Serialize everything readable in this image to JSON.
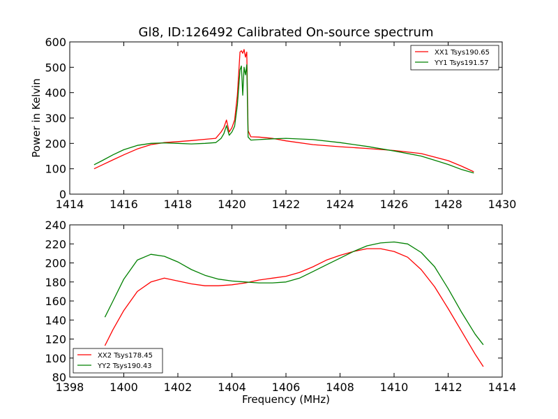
{
  "title": "Gl8, ID:126492 Calibrated On-source spectrum",
  "chart_data": [
    {
      "type": "line",
      "title": "Gl8, ID:126492 Calibrated On-source spectrum",
      "xlabel": "",
      "ylabel": "Power in Kelvin",
      "xlim": [
        1414,
        1430
      ],
      "ylim": [
        0,
        600
      ],
      "xticks": [
        1414,
        1416,
        1418,
        1420,
        1422,
        1424,
        1426,
        1428,
        1430
      ],
      "yticks": [
        0,
        100,
        200,
        300,
        400,
        500,
        600
      ],
      "legend_position": "top-right",
      "grid": false,
      "series": [
        {
          "name": "XX1 Tsys190.65",
          "color": "#ff0000",
          "x": [
            1414.9,
            1415.2,
            1415.6,
            1416.0,
            1416.5,
            1417.0,
            1417.5,
            1418.0,
            1418.5,
            1419.0,
            1419.4,
            1419.6,
            1419.7,
            1419.8,
            1419.9,
            1420.0,
            1420.1,
            1420.2,
            1420.3,
            1420.35,
            1420.4,
            1420.45,
            1420.5,
            1420.55,
            1420.6,
            1420.7,
            1421.0,
            1421.5,
            1422.0,
            1423.0,
            1424.0,
            1425.0,
            1426.0,
            1427.0,
            1428.0,
            1428.5,
            1428.95
          ],
          "values": [
            100,
            115,
            135,
            155,
            178,
            195,
            203,
            207,
            211,
            216,
            220,
            245,
            262,
            292,
            245,
            262,
            292,
            390,
            560,
            565,
            555,
            570,
            540,
            560,
            250,
            226,
            225,
            220,
            210,
            195,
            187,
            180,
            172,
            160,
            132,
            110,
            88
          ]
        },
        {
          "name": "YY1 Tsys191.57",
          "color": "#008000",
          "x": [
            1414.9,
            1415.2,
            1415.6,
            1416.0,
            1416.5,
            1417.0,
            1417.5,
            1418.0,
            1418.5,
            1419.0,
            1419.4,
            1419.6,
            1419.7,
            1419.8,
            1419.9,
            1420.0,
            1420.1,
            1420.2,
            1420.3,
            1420.35,
            1420.4,
            1420.45,
            1420.5,
            1420.55,
            1420.6,
            1420.7,
            1421.0,
            1421.5,
            1422.0,
            1423.0,
            1424.0,
            1425.0,
            1426.0,
            1427.0,
            1428.0,
            1428.5,
            1428.95
          ],
          "values": [
            116,
            132,
            155,
            175,
            192,
            200,
            202,
            200,
            198,
            200,
            203,
            220,
            238,
            270,
            232,
            245,
            268,
            350,
            490,
            505,
            390,
            500,
            470,
            510,
            225,
            213,
            215,
            218,
            220,
            215,
            203,
            188,
            170,
            150,
            117,
            97,
            83
          ]
        }
      ]
    },
    {
      "type": "line",
      "title": "",
      "xlabel": "Frequency (MHz)",
      "ylabel": "",
      "xlim": [
        1398,
        1414
      ],
      "ylim": [
        80,
        240
      ],
      "xticks": [
        1398,
        1400,
        1402,
        1404,
        1406,
        1408,
        1410,
        1412,
        1414
      ],
      "yticks": [
        80,
        100,
        120,
        140,
        160,
        180,
        200,
        220,
        240
      ],
      "legend_position": "bottom-left",
      "grid": false,
      "series": [
        {
          "name": "XX2 Tsys178.45",
          "color": "#ff0000",
          "x": [
            1399.3,
            1399.6,
            1400.0,
            1400.5,
            1401.0,
            1401.5,
            1402.0,
            1402.5,
            1403.0,
            1403.5,
            1404.0,
            1404.5,
            1405.0,
            1405.5,
            1406.0,
            1406.5,
            1407.0,
            1407.5,
            1408.0,
            1408.5,
            1409.0,
            1409.5,
            1410.0,
            1410.5,
            1411.0,
            1411.5,
            1412.0,
            1412.5,
            1413.0,
            1413.3
          ],
          "values": [
            113,
            130,
            150,
            170,
            180,
            184,
            181,
            178,
            176,
            176,
            177,
            179,
            182,
            184,
            186,
            190,
            196,
            203,
            208,
            212,
            215,
            215,
            212,
            206,
            193,
            175,
            152,
            128,
            104,
            91
          ]
        },
        {
          "name": "YY2 Tsys190.43",
          "color": "#008000",
          "x": [
            1399.3,
            1399.6,
            1400.0,
            1400.5,
            1401.0,
            1401.5,
            1402.0,
            1402.5,
            1403.0,
            1403.5,
            1404.0,
            1404.5,
            1405.0,
            1405.5,
            1406.0,
            1406.5,
            1407.0,
            1407.5,
            1408.0,
            1408.5,
            1409.0,
            1409.5,
            1410.0,
            1410.5,
            1411.0,
            1411.5,
            1412.0,
            1412.5,
            1413.0,
            1413.3
          ],
          "values": [
            143,
            160,
            183,
            203,
            209,
            207,
            201,
            193,
            187,
            183,
            181,
            180,
            179,
            179,
            180,
            184,
            191,
            198,
            205,
            212,
            218,
            221,
            222,
            220,
            211,
            196,
            173,
            148,
            125,
            114
          ]
        }
      ]
    }
  ]
}
